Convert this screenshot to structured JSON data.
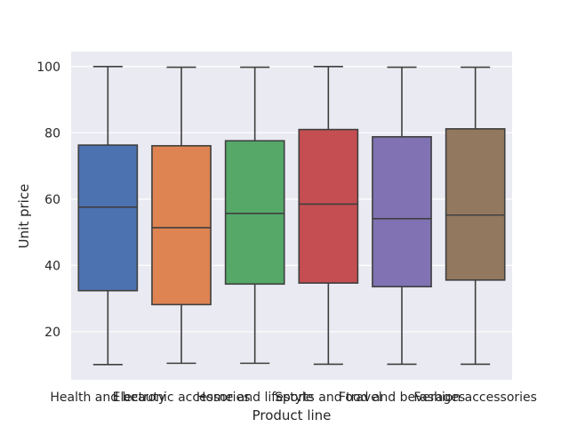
{
  "chart_data": {
    "type": "box",
    "xlabel": "Product line",
    "ylabel": "Unit price",
    "ylim": [
      5.5,
      104.5
    ],
    "yticks": [
      20,
      40,
      60,
      80,
      100
    ],
    "grid": true,
    "categories": [
      "Health and beauty",
      "Electronic accessories",
      "Home and lifestyle",
      "Sports and travel",
      "Food and beverages",
      "Fashion accessories"
    ],
    "series": [
      {
        "category": "Health and beauty",
        "min": 10.1,
        "q1": 32.4,
        "median": 57.6,
        "q3": 76.3,
        "max": 100.0,
        "color": "#4c72b0"
      },
      {
        "category": "Electronic accessories",
        "min": 10.5,
        "q1": 28.2,
        "median": 51.4,
        "q3": 76.1,
        "max": 99.8,
        "color": "#dd8452"
      },
      {
        "category": "Home and lifestyle",
        "min": 10.5,
        "q1": 34.4,
        "median": 55.7,
        "q3": 77.6,
        "max": 99.8,
        "color": "#55a868"
      },
      {
        "category": "Sports and travel",
        "min": 10.2,
        "q1": 34.7,
        "median": 58.5,
        "q3": 81.0,
        "max": 100.0,
        "color": "#c44e52"
      },
      {
        "category": "Food and beverages",
        "min": 10.2,
        "q1": 33.6,
        "median": 54.1,
        "q3": 78.8,
        "max": 99.8,
        "color": "#8172b3"
      },
      {
        "category": "Fashion accessories",
        "min": 10.2,
        "q1": 35.6,
        "median": 55.2,
        "q3": 81.2,
        "max": 99.8,
        "color": "#937860"
      }
    ]
  }
}
